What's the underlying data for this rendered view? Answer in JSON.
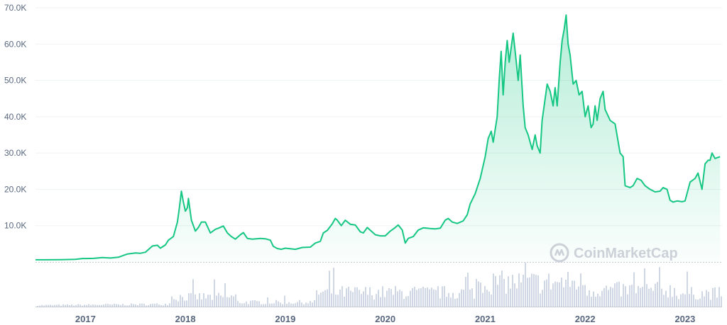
{
  "chart_data": {
    "type": "area",
    "title": "",
    "xlabel": "",
    "ylabel": "",
    "ylim": [
      0,
      70000
    ],
    "xlim": [
      2016.5,
      2023.37
    ],
    "y_ticks": [
      10000,
      20000,
      30000,
      40000,
      50000,
      60000,
      70000
    ],
    "y_tick_labels": [
      "10.0K",
      "20.0K",
      "30.0K",
      "40.0K",
      "50.0K",
      "60.0K",
      "70.0K"
    ],
    "x_ticks": [
      2017,
      2018,
      2019,
      2020,
      2021,
      2022,
      2023
    ],
    "x_tick_labels": [
      "2017",
      "2018",
      "2019",
      "2020",
      "2021",
      "2022",
      "2023"
    ],
    "grid": "horizontal",
    "colors": {
      "line": "#16c784",
      "area_top": "#16c784",
      "volume": "#cfd6e4",
      "grid": "#eff2f5",
      "text": "#58667e"
    },
    "watermark": "CoinMarketCap",
    "series": [
      {
        "values": [
          [
            2016.5,
            600
          ],
          [
            2016.6,
            600
          ],
          [
            2016.75,
            650
          ],
          [
            2016.9,
            750
          ],
          [
            2016.97,
            950
          ],
          [
            2017.0,
            960
          ],
          [
            2017.08,
            1000
          ],
          [
            2017.17,
            1200
          ],
          [
            2017.25,
            1100
          ],
          [
            2017.33,
            1300
          ],
          [
            2017.42,
            2200
          ],
          [
            2017.5,
            2500
          ],
          [
            2017.55,
            2400
          ],
          [
            2017.6,
            2700
          ],
          [
            2017.67,
            4400
          ],
          [
            2017.72,
            4600
          ],
          [
            2017.75,
            3800
          ],
          [
            2017.8,
            4700
          ],
          [
            2017.83,
            6000
          ],
          [
            2017.88,
            7000
          ],
          [
            2017.92,
            11000
          ],
          [
            2017.94,
            15000
          ],
          [
            2017.96,
            19500
          ],
          [
            2017.98,
            16500
          ],
          [
            2018.0,
            14000
          ],
          [
            2018.02,
            15000
          ],
          [
            2018.03,
            17500
          ],
          [
            2018.06,
            11500
          ],
          [
            2018.1,
            8500
          ],
          [
            2018.13,
            9500
          ],
          [
            2018.16,
            11000
          ],
          [
            2018.2,
            11000
          ],
          [
            2018.25,
            8000
          ],
          [
            2018.3,
            9000
          ],
          [
            2018.33,
            9300
          ],
          [
            2018.38,
            9900
          ],
          [
            2018.42,
            8000
          ],
          [
            2018.46,
            7000
          ],
          [
            2018.5,
            6300
          ],
          [
            2018.55,
            7500
          ],
          [
            2018.58,
            8100
          ],
          [
            2018.62,
            6500
          ],
          [
            2018.67,
            6300
          ],
          [
            2018.75,
            6500
          ],
          [
            2018.8,
            6400
          ],
          [
            2018.85,
            6000
          ],
          [
            2018.88,
            4300
          ],
          [
            2018.92,
            3700
          ],
          [
            2018.96,
            3500
          ],
          [
            2019.0,
            3800
          ],
          [
            2019.1,
            3500
          ],
          [
            2019.17,
            4000
          ],
          [
            2019.25,
            4100
          ],
          [
            2019.3,
            5200
          ],
          [
            2019.35,
            5700
          ],
          [
            2019.38,
            8000
          ],
          [
            2019.42,
            8700
          ],
          [
            2019.47,
            10500
          ],
          [
            2019.5,
            12000
          ],
          [
            2019.52,
            11500
          ],
          [
            2019.56,
            10000
          ],
          [
            2019.6,
            11500
          ],
          [
            2019.65,
            10400
          ],
          [
            2019.7,
            10200
          ],
          [
            2019.75,
            8300
          ],
          [
            2019.78,
            8000
          ],
          [
            2019.82,
            9500
          ],
          [
            2019.86,
            8500
          ],
          [
            2019.9,
            7500
          ],
          [
            2019.95,
            7200
          ],
          [
            2020.0,
            7200
          ],
          [
            2020.05,
            8500
          ],
          [
            2020.1,
            9500
          ],
          [
            2020.13,
            10200
          ],
          [
            2020.17,
            8800
          ],
          [
            2020.2,
            5200
          ],
          [
            2020.23,
            6500
          ],
          [
            2020.28,
            7000
          ],
          [
            2020.33,
            8800
          ],
          [
            2020.38,
            9400
          ],
          [
            2020.45,
            9200
          ],
          [
            2020.5,
            9100
          ],
          [
            2020.55,
            9300
          ],
          [
            2020.6,
            11500
          ],
          [
            2020.63,
            12000
          ],
          [
            2020.67,
            11000
          ],
          [
            2020.72,
            10600
          ],
          [
            2020.78,
            11300
          ],
          [
            2020.82,
            13000
          ],
          [
            2020.85,
            16000
          ],
          [
            2020.9,
            18800
          ],
          [
            2020.95,
            23000
          ],
          [
            2021.0,
            29000
          ],
          [
            2021.03,
            34000
          ],
          [
            2021.06,
            36000
          ],
          [
            2021.08,
            33000
          ],
          [
            2021.12,
            40000
          ],
          [
            2021.14,
            50000
          ],
          [
            2021.16,
            58000
          ],
          [
            2021.18,
            46000
          ],
          [
            2021.2,
            55000
          ],
          [
            2021.22,
            61000
          ],
          [
            2021.24,
            55000
          ],
          [
            2021.26,
            59000
          ],
          [
            2021.28,
            63000
          ],
          [
            2021.3,
            58000
          ],
          [
            2021.33,
            50000
          ],
          [
            2021.35,
            57000
          ],
          [
            2021.38,
            43000
          ],
          [
            2021.4,
            37000
          ],
          [
            2021.43,
            35000
          ],
          [
            2021.45,
            33000
          ],
          [
            2021.47,
            31000
          ],
          [
            2021.5,
            35000
          ],
          [
            2021.52,
            32000
          ],
          [
            2021.55,
            30000
          ],
          [
            2021.57,
            39000
          ],
          [
            2021.6,
            45000
          ],
          [
            2021.62,
            49000
          ],
          [
            2021.65,
            47000
          ],
          [
            2021.68,
            43000
          ],
          [
            2021.7,
            48000
          ],
          [
            2021.72,
            43000
          ],
          [
            2021.75,
            55000
          ],
          [
            2021.77,
            61000
          ],
          [
            2021.79,
            64000
          ],
          [
            2021.81,
            68000
          ],
          [
            2021.83,
            60000
          ],
          [
            2021.85,
            57000
          ],
          [
            2021.88,
            49000
          ],
          [
            2021.91,
            50000
          ],
          [
            2021.94,
            46000
          ],
          [
            2021.97,
            47000
          ],
          [
            2022.0,
            40000
          ],
          [
            2022.03,
            43000
          ],
          [
            2022.06,
            37000
          ],
          [
            2022.08,
            38000
          ],
          [
            2022.1,
            43000
          ],
          [
            2022.12,
            39000
          ],
          [
            2022.15,
            45000
          ],
          [
            2022.18,
            47000
          ],
          [
            2022.2,
            42000
          ],
          [
            2022.25,
            39000
          ],
          [
            2022.3,
            38000
          ],
          [
            2022.35,
            30000
          ],
          [
            2022.38,
            29000
          ],
          [
            2022.4,
            21000
          ],
          [
            2022.45,
            20500
          ],
          [
            2022.48,
            21000
          ],
          [
            2022.52,
            23000
          ],
          [
            2022.56,
            22500
          ],
          [
            2022.6,
            21000
          ],
          [
            2022.65,
            20000
          ],
          [
            2022.7,
            19300
          ],
          [
            2022.75,
            19500
          ],
          [
            2022.78,
            20500
          ],
          [
            2022.82,
            20000
          ],
          [
            2022.85,
            17000
          ],
          [
            2022.88,
            16500
          ],
          [
            2022.92,
            16800
          ],
          [
            2022.97,
            16600
          ],
          [
            2023.0,
            16800
          ],
          [
            2023.05,
            22000
          ],
          [
            2023.1,
            23000
          ],
          [
            2023.13,
            24500
          ],
          [
            2023.17,
            20000
          ],
          [
            2023.2,
            27000
          ],
          [
            2023.23,
            28000
          ],
          [
            2023.25,
            28000
          ],
          [
            2023.27,
            30000
          ],
          [
            2023.3,
            28500
          ],
          [
            2023.35,
            29000
          ]
        ]
      }
    ]
  }
}
